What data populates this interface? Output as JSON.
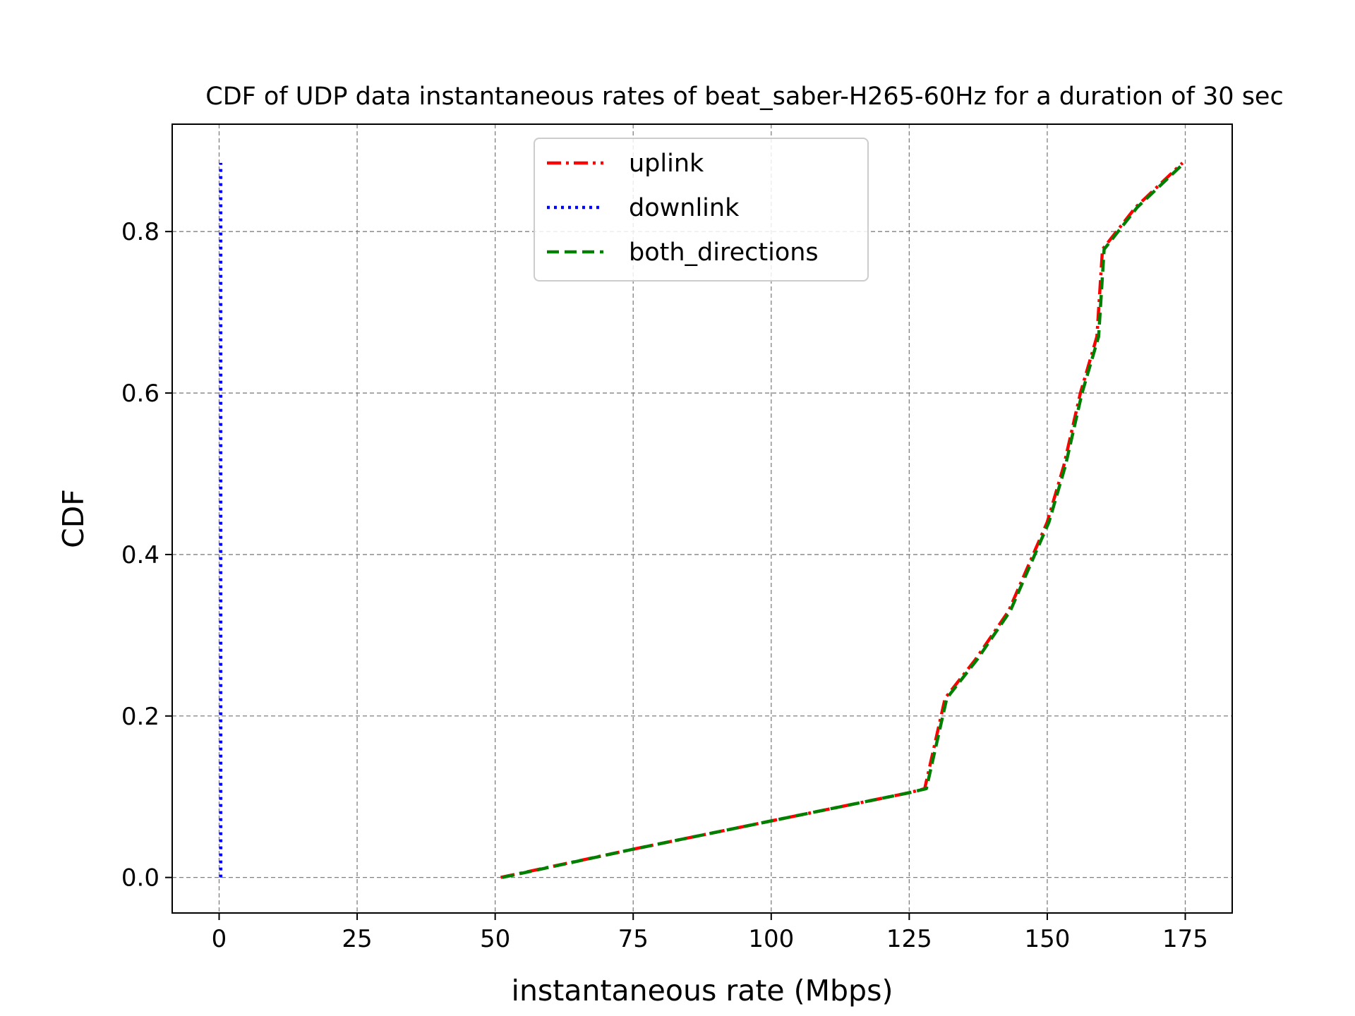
{
  "chart_data": {
    "type": "line",
    "title": "CDF of UDP data instantaneous rates of beat_saber-H265-60Hz for a duration of 30 sec",
    "xlabel": "instantaneous rate (Mbps)",
    "ylabel": "CDF",
    "xlim": [
      -8.5,
      183.5
    ],
    "ylim": [
      -0.044,
      0.933
    ],
    "xticks": [
      0,
      25,
      50,
      75,
      100,
      125,
      150,
      175
    ],
    "xtick_labels": [
      "0",
      "25",
      "50",
      "75",
      "100",
      "125",
      "150",
      "175"
    ],
    "yticks": [
      0.0,
      0.2,
      0.4,
      0.6,
      0.8
    ],
    "ytick_labels": [
      "0.0",
      "0.2",
      "0.4",
      "0.6",
      "0.8"
    ],
    "grid": true,
    "legend_position": "upper-center",
    "series": [
      {
        "name": "uplink",
        "color": "#ff0000",
        "style": "dashdot",
        "points": [
          [
            51,
            0.0
          ],
          [
            75,
            0.035
          ],
          [
            100,
            0.07
          ],
          [
            125,
            0.105
          ],
          [
            127.8,
            0.11
          ],
          [
            131.5,
            0.222
          ],
          [
            137,
            0.27
          ],
          [
            143,
            0.33
          ],
          [
            150,
            0.44
          ],
          [
            153,
            0.51
          ],
          [
            156,
            0.6
          ],
          [
            159,
            0.67
          ],
          [
            160,
            0.778
          ],
          [
            166,
            0.83
          ],
          [
            174.5,
            0.885
          ]
        ]
      },
      {
        "name": "downlink",
        "color": "#0000ff",
        "style": "dotted",
        "points": [
          [
            0.3,
            0.0
          ],
          [
            0.3,
            0.885
          ]
        ]
      },
      {
        "name": "both_directions",
        "color": "#008000",
        "style": "dashed",
        "points": [
          [
            51.3,
            0.0
          ],
          [
            75,
            0.035
          ],
          [
            100,
            0.07
          ],
          [
            125,
            0.105
          ],
          [
            128.1,
            0.11
          ],
          [
            131.8,
            0.222
          ],
          [
            137.3,
            0.27
          ],
          [
            143.3,
            0.33
          ],
          [
            150.3,
            0.44
          ],
          [
            153.3,
            0.51
          ],
          [
            156.3,
            0.6
          ],
          [
            159.3,
            0.67
          ],
          [
            160.3,
            0.778
          ],
          [
            166.3,
            0.83
          ],
          [
            174.8,
            0.885
          ]
        ]
      }
    ]
  }
}
